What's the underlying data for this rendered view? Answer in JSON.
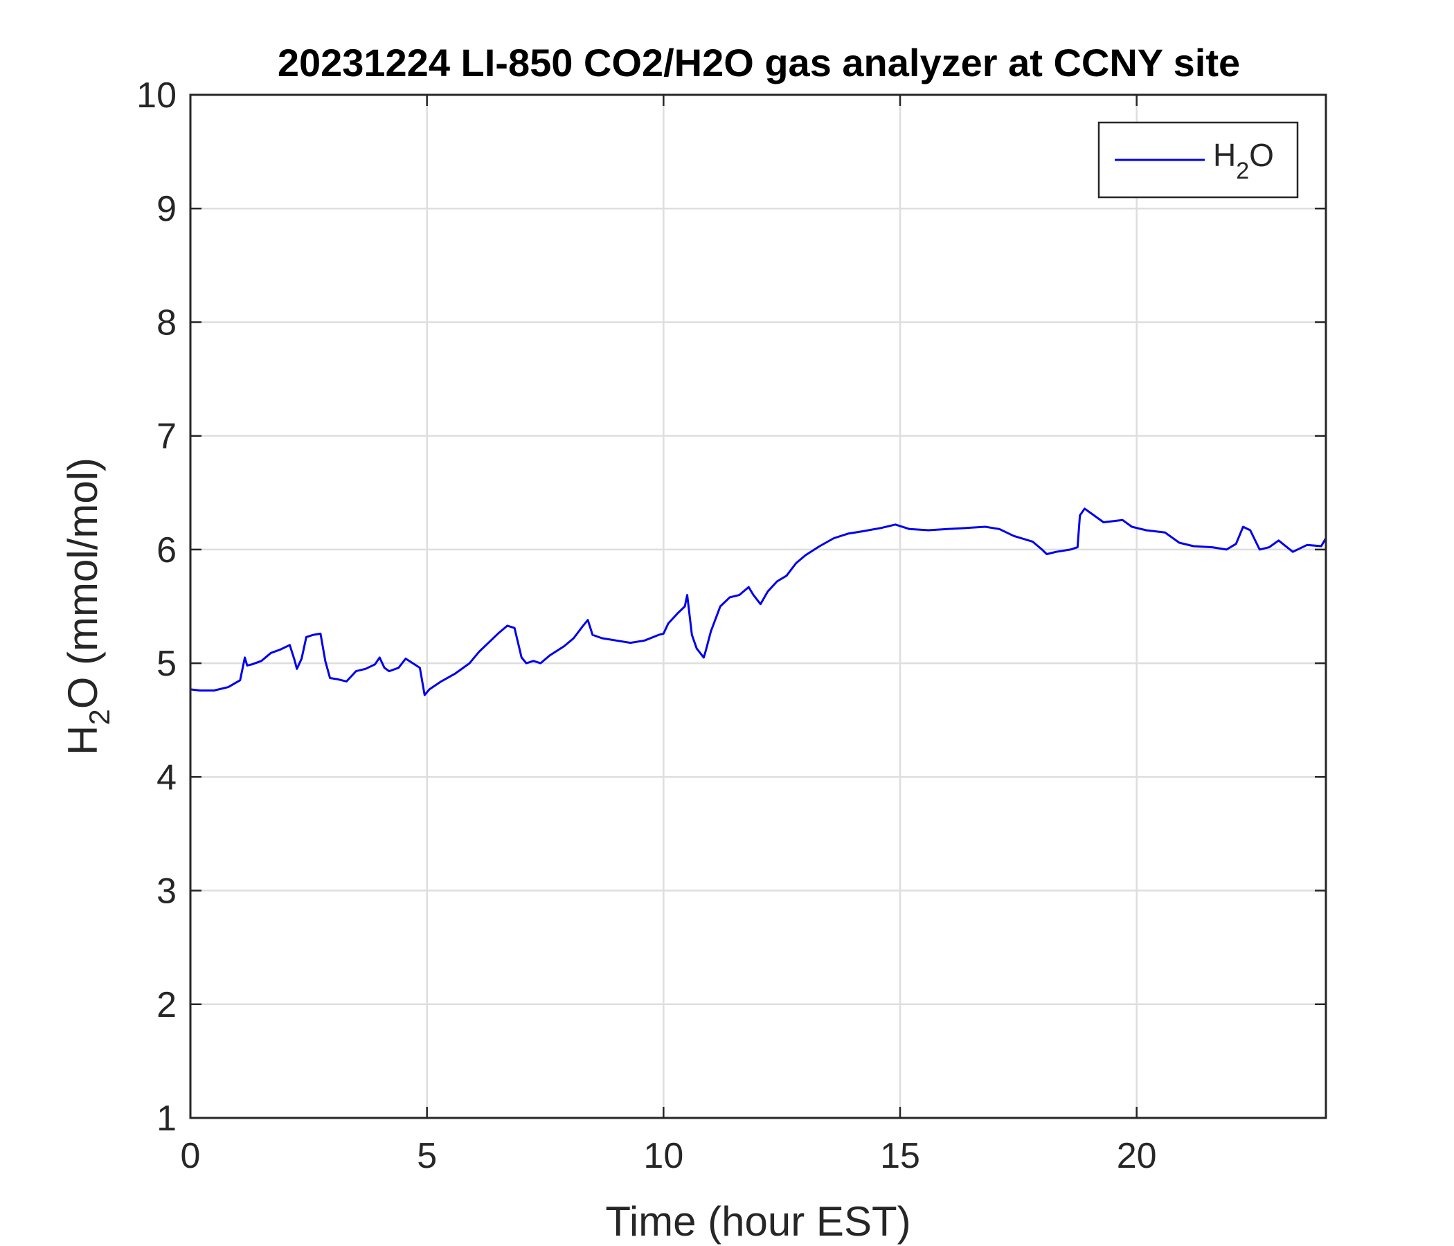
{
  "chart_data": {
    "type": "line",
    "title": "20231224 LI-850 CO2/H2O gas analyzer at CCNY site",
    "xlabel": "Time (hour EST)",
    "ylabel": {
      "main": "H",
      "sub": "2",
      "rest": "O (mmol/mol)"
    },
    "xlim": [
      0,
      24
    ],
    "ylim": [
      1,
      10
    ],
    "xticks": [
      0,
      5,
      10,
      15,
      20
    ],
    "yticks": [
      1,
      2,
      3,
      4,
      5,
      6,
      7,
      8,
      9,
      10
    ],
    "grid": true,
    "legend_position": "top-right",
    "series": [
      {
        "name": {
          "main": "H",
          "sub": "2",
          "rest": "O"
        },
        "color": "#0000ee",
        "x": [
          0,
          0.2,
          0.5,
          0.8,
          1.05,
          1.15,
          1.2,
          1.3,
          1.5,
          1.7,
          1.9,
          2.1,
          2.2,
          2.25,
          2.35,
          2.45,
          2.6,
          2.75,
          2.85,
          2.95,
          3.1,
          3.3,
          3.5,
          3.7,
          3.9,
          4.0,
          4.1,
          4.2,
          4.4,
          4.55,
          4.7,
          4.85,
          4.95,
          5.05,
          5.3,
          5.6,
          5.9,
          6.1,
          6.3,
          6.5,
          6.7,
          6.85,
          7.0,
          7.1,
          7.25,
          7.4,
          7.6,
          7.9,
          8.1,
          8.3,
          8.4,
          8.5,
          8.7,
          9.0,
          9.3,
          9.6,
          9.9,
          10.0,
          10.1,
          10.3,
          10.45,
          10.5,
          10.6,
          10.7,
          10.85,
          10.9,
          11.0,
          11.2,
          11.4,
          11.6,
          11.8,
          11.9,
          12.05,
          12.2,
          12.4,
          12.6,
          12.8,
          13.0,
          13.3,
          13.6,
          13.9,
          14.2,
          14.6,
          14.9,
          15.2,
          15.6,
          16.0,
          16.4,
          16.8,
          17.1,
          17.4,
          17.8,
          18.0,
          18.1,
          18.3,
          18.6,
          18.75,
          18.8,
          18.9,
          19.1,
          19.3,
          19.7,
          19.9,
          20.2,
          20.6,
          20.9,
          21.2,
          21.6,
          21.9,
          22.1,
          22.25,
          22.4,
          22.6,
          22.8,
          23.0,
          23.3,
          23.6,
          23.9,
          24.0
        ],
        "y": [
          4.77,
          4.76,
          4.76,
          4.79,
          4.85,
          5.05,
          4.98,
          4.99,
          5.02,
          5.09,
          5.12,
          5.16,
          5.03,
          4.95,
          5.04,
          5.23,
          5.25,
          5.26,
          5.02,
          4.87,
          4.86,
          4.84,
          4.93,
          4.95,
          4.99,
          5.05,
          4.96,
          4.93,
          4.96,
          5.04,
          5.0,
          4.96,
          4.72,
          4.77,
          4.84,
          4.91,
          5.0,
          5.1,
          5.18,
          5.26,
          5.33,
          5.31,
          5.05,
          5.0,
          5.02,
          5.0,
          5.07,
          5.15,
          5.22,
          5.33,
          5.38,
          5.25,
          5.22,
          5.2,
          5.18,
          5.2,
          5.25,
          5.26,
          5.35,
          5.44,
          5.5,
          5.6,
          5.25,
          5.13,
          5.05,
          5.12,
          5.28,
          5.5,
          5.58,
          5.6,
          5.67,
          5.6,
          5.52,
          5.63,
          5.72,
          5.77,
          5.88,
          5.95,
          6.03,
          6.1,
          6.14,
          6.16,
          6.19,
          6.22,
          6.18,
          6.17,
          6.18,
          6.19,
          6.2,
          6.18,
          6.12,
          6.07,
          6.0,
          5.96,
          5.98,
          6.0,
          6.02,
          6.3,
          6.36,
          6.3,
          6.24,
          6.26,
          6.2,
          6.17,
          6.15,
          6.06,
          6.03,
          6.02,
          6.0,
          6.05,
          6.2,
          6.17,
          6.0,
          6.02,
          6.08,
          5.98,
          6.04,
          6.03,
          6.1
        ]
      }
    ]
  }
}
